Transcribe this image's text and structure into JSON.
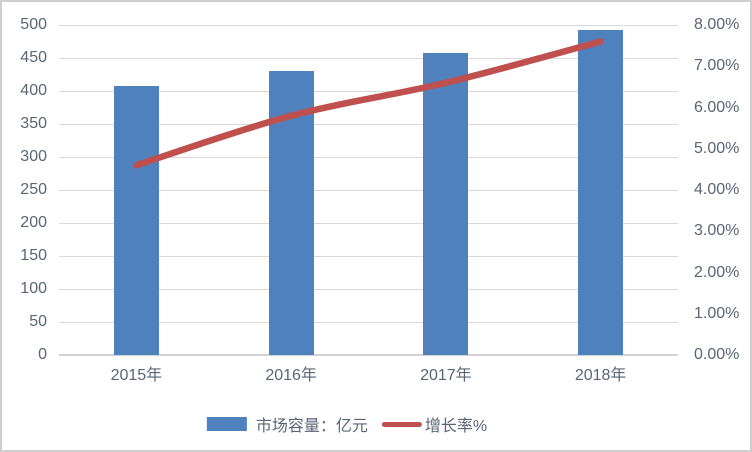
{
  "chart_data": {
    "type": "combo",
    "categories": [
      "2015年",
      "2016年",
      "2017年",
      "2018年"
    ],
    "series": [
      {
        "name": "市场容量：亿元",
        "type": "bar",
        "axis": "left",
        "color": "#4f81bd",
        "values": [
          407,
          430,
          458,
          493
        ]
      },
      {
        "name": "增长率%",
        "type": "line",
        "axis": "right",
        "color": "#c0504d",
        "values": [
          4.6,
          5.8,
          6.6,
          7.6
        ]
      }
    ],
    "title": "",
    "xlabel": "",
    "ylabel": "",
    "left_axis": {
      "min": 0,
      "max": 500,
      "step": 50,
      "tick_labels": [
        "0",
        "50",
        "100",
        "150",
        "200",
        "250",
        "300",
        "350",
        "400",
        "450",
        "500"
      ]
    },
    "right_axis": {
      "min": 0,
      "max": 8,
      "step": 1,
      "tick_labels": [
        "0.00%",
        "1.00%",
        "2.00%",
        "3.00%",
        "4.00%",
        "5.00%",
        "6.00%",
        "7.00%",
        "8.00%"
      ]
    },
    "grid": true,
    "legend_position": "bottom"
  },
  "colors": {
    "bar": "#4f81bd",
    "line": "#c0504d",
    "gridline": "#d9d9d9",
    "axis_text": "#5a6575",
    "frame_border": "#cfcfcf"
  }
}
